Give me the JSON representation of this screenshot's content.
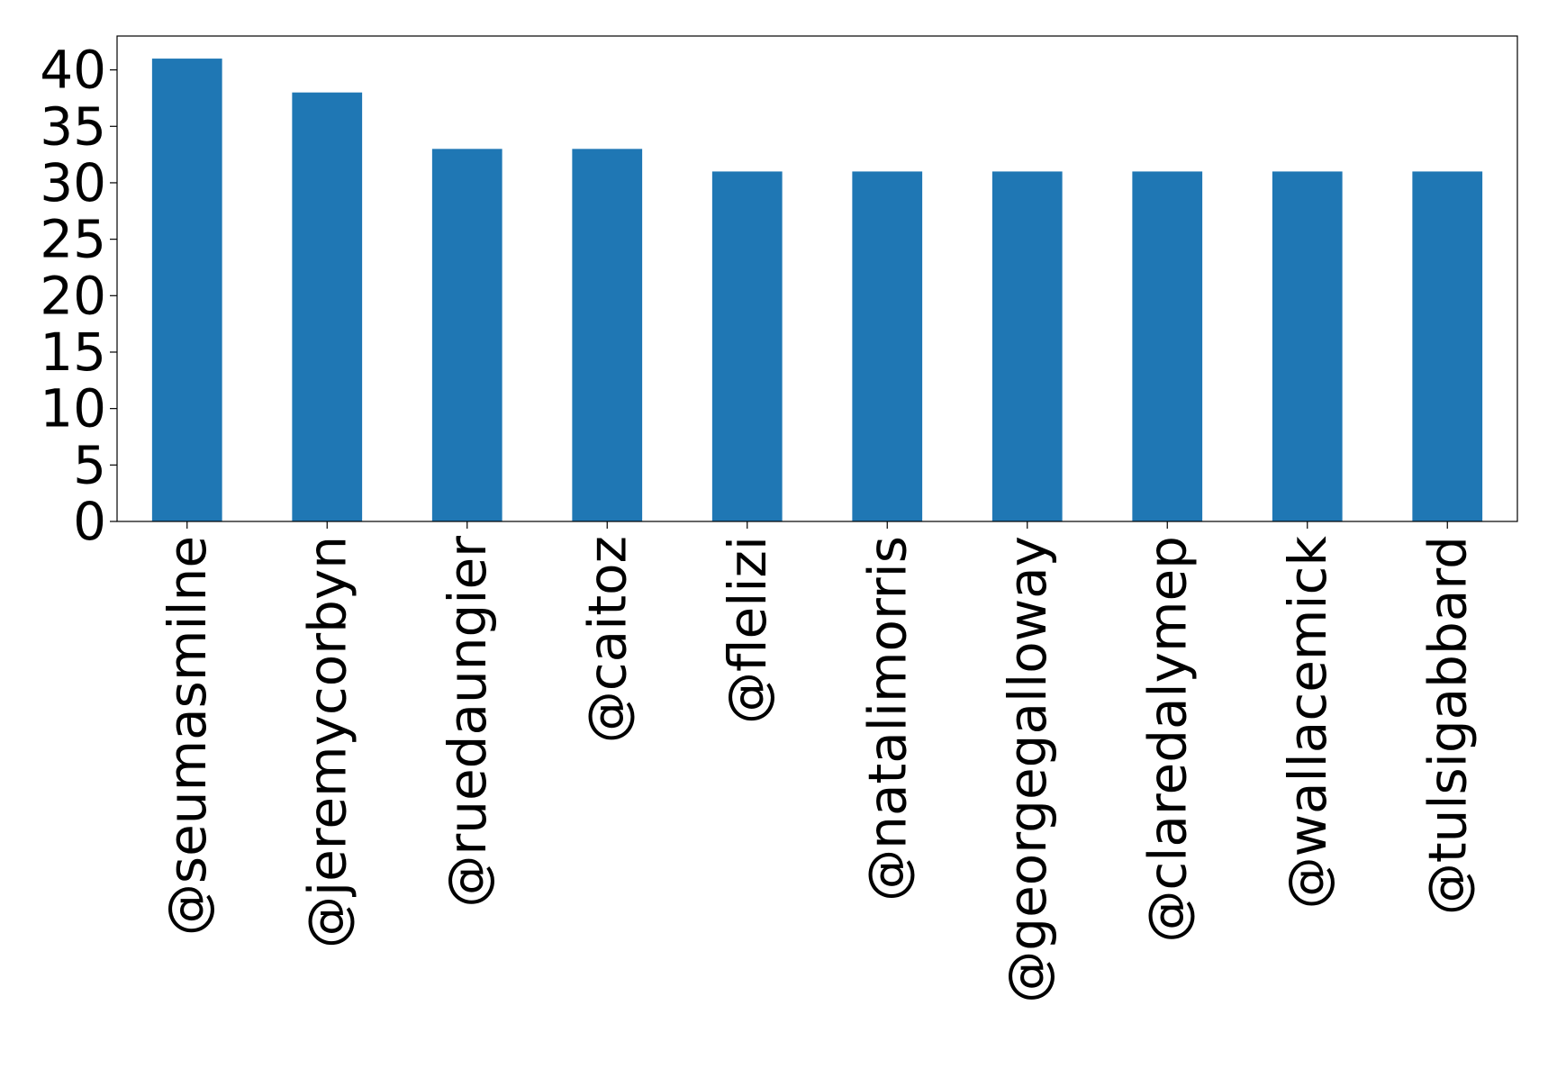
{
  "chart_data": {
    "type": "bar",
    "categories": [
      "@seumasmilne",
      "@jeremycorbyn",
      "@ruedaungier",
      "@caitoz",
      "@flelizi",
      "@natalimorris",
      "@georgegalloway",
      "@claredalymep",
      "@wallacemick",
      "@tulsigabbard"
    ],
    "values": [
      41,
      38,
      33,
      33,
      31,
      31,
      31,
      31,
      31,
      31
    ],
    "title": "",
    "xlabel": "",
    "ylabel": "",
    "ylim": [
      0,
      43
    ],
    "yticks": [
      "0",
      "5",
      "10",
      "15",
      "20",
      "25",
      "30",
      "35",
      "40"
    ],
    "grid": false,
    "legend": "none",
    "bar_color": "#1f77b4"
  }
}
